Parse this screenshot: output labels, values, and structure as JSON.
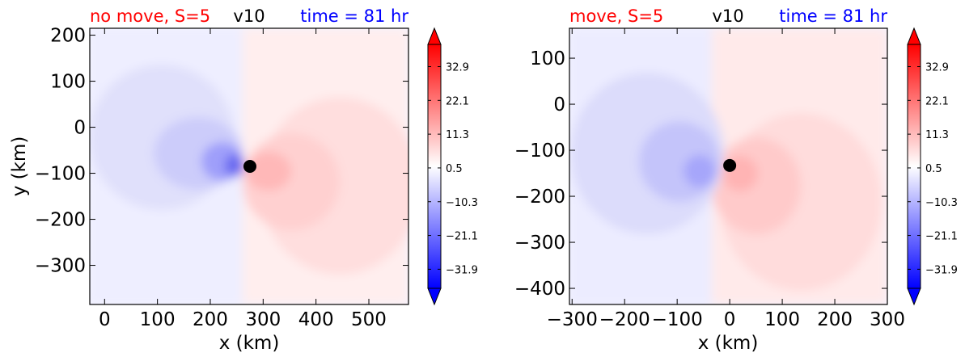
{
  "chart_data": [
    {
      "type": "heatmap",
      "title_left": "no move, S=5",
      "title_center": "v10",
      "title_right": "time = 81 hr",
      "title_left_color": "#ff0000",
      "title_center_color": "#000000",
      "title_right_color": "#0000ff",
      "xlabel": "x (km)",
      "ylabel": "y (km)",
      "xlim": [
        -28,
        575
      ],
      "ylim": [
        -385,
        215
      ],
      "xticks": [
        0,
        100,
        200,
        300,
        400,
        500
      ],
      "xtick_labels": [
        "0",
        "100",
        "200",
        "300",
        "400",
        "500"
      ],
      "yticks": [
        200,
        100,
        0,
        -100,
        -200,
        -300
      ],
      "ytick_labels": [
        "200",
        "100",
        "0",
        "−100",
        "−200",
        "−300"
      ],
      "center_marker": [
        275,
        -85
      ],
      "colorbar": {
        "range": [
          -38,
          40
        ],
        "ticks": [
          32.9,
          22.1,
          11.3,
          0.5,
          -10.3,
          -21.1,
          -31.9
        ],
        "tick_labels": [
          "32.9",
          "22.1",
          "11.3",
          "0.5",
          "−10.3",
          "−21.1",
          "−31.9"
        ],
        "extend": "both",
        "colormap": "bwr"
      }
    },
    {
      "type": "heatmap",
      "title_left": "move, S=5",
      "title_center": "v10",
      "title_right": "time = 81 hr",
      "title_left_color": "#ff0000",
      "title_center_color": "#000000",
      "title_right_color": "#0000ff",
      "xlabel": "x (km)",
      "ylabel": "",
      "xlim": [
        -305,
        300
      ],
      "ylim": [
        -435,
        165
      ],
      "xticks": [
        -300,
        -200,
        -100,
        0,
        100,
        200,
        300
      ],
      "xtick_labels": [
        "−300",
        "−200",
        "−100",
        "0",
        "100",
        "200",
        "300"
      ],
      "yticks": [
        100,
        0,
        -100,
        -200,
        -300,
        -400
      ],
      "ytick_labels": [
        "100",
        "0",
        "−100",
        "−200",
        "−300",
        "−400"
      ],
      "center_marker": [
        0,
        -133
      ],
      "colorbar": {
        "range": [
          -38,
          40
        ],
        "ticks": [
          32.9,
          22.1,
          11.3,
          0.5,
          -10.3,
          -21.1,
          -31.9
        ],
        "tick_labels": [
          "32.9",
          "22.1",
          "11.3",
          "0.5",
          "−10.3",
          "−21.1",
          "−31.9"
        ],
        "extend": "both",
        "colormap": "bwr"
      }
    }
  ]
}
